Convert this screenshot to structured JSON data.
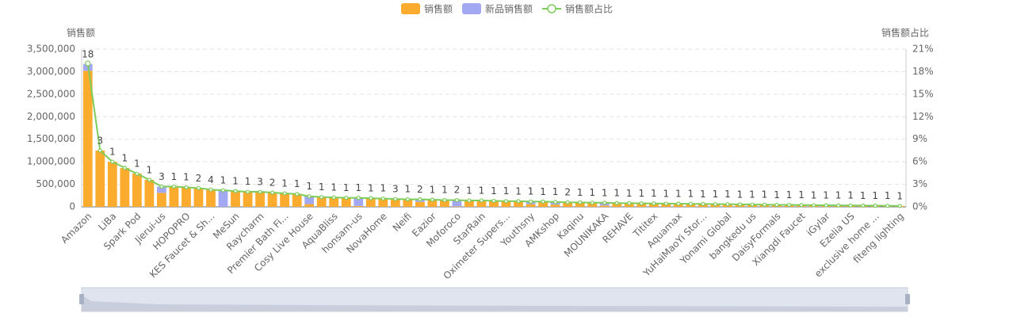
{
  "chart_data": {
    "type": "bar",
    "y_axis_label": "销售额",
    "y2_axis_label": "销售额占比",
    "categories": [
      "Amazon",
      null,
      "LiBa",
      null,
      "Spark Pod",
      null,
      "Jierui-us",
      null,
      "HOPOPRO",
      null,
      "KES Faucet & Sh...",
      null,
      "MeSun",
      null,
      "Raycharm",
      null,
      "Premier Bath Fi...",
      null,
      "Cosy Live House",
      null,
      "AquaBliss",
      null,
      "honsam-us",
      null,
      "NovaHome",
      null,
      "Neifi",
      null,
      "Eazior",
      null,
      "Moforoco",
      null,
      "StarRain",
      null,
      "Oximeter Supers...",
      null,
      "Youthsny",
      null,
      "AMKshop",
      null,
      "Kaqinu",
      null,
      "MOUNIKAKA",
      null,
      "REHAVE",
      null,
      "Tititex",
      null,
      "Aquamax",
      null,
      "YuHaiMaoYi Stor...",
      null,
      "Yonami Global",
      null,
      "bangkedu us",
      null,
      "DaisyFormals",
      null,
      "Xiangdi Faucet",
      null,
      "iGylar",
      null,
      "Ezelia US",
      null,
      "exclusive home ...",
      null,
      "fiteng lighting"
    ],
    "series": [
      {
        "name": "销售额",
        "type": "bar",
        "color": "#fbab2d",
        "values": [
          3020000,
          1250000,
          1000000,
          860000,
          740000,
          600000,
          310000,
          450000,
          440000,
          410000,
          380000,
          0,
          350000,
          340000,
          330000,
          320000,
          300000,
          290000,
          60000,
          220000,
          210000,
          205000,
          20000,
          195000,
          190000,
          180000,
          175000,
          110000,
          160000,
          155000,
          10000,
          145000,
          140000,
          135000,
          130000,
          125000,
          60000,
          115000,
          50000,
          105000,
          100000,
          95000,
          30000,
          85000,
          82000,
          79000,
          76000,
          73000,
          70000,
          67000,
          64000,
          61000,
          58000,
          55000,
          52000,
          49000,
          46000,
          43000,
          40000,
          37000,
          35000,
          33000,
          31000,
          29000,
          27000,
          24000,
          20000
        ]
      },
      {
        "name": "新品销售额",
        "type": "bar",
        "color": "#a3a8f2",
        "values": [
          150000,
          0,
          0,
          0,
          0,
          0,
          140000,
          0,
          0,
          0,
          0,
          370000,
          0,
          0,
          0,
          0,
          0,
          0,
          180000,
          0,
          0,
          0,
          180000,
          0,
          0,
          0,
          0,
          60000,
          0,
          0,
          150000,
          0,
          0,
          0,
          0,
          0,
          60000,
          0,
          60000,
          0,
          0,
          0,
          60000,
          0,
          0,
          0,
          0,
          0,
          0,
          0,
          0,
          0,
          0,
          0,
          0,
          0,
          0,
          0,
          0,
          0,
          0,
          0,
          0,
          0,
          0,
          0,
          0
        ]
      },
      {
        "name": "销售额占比",
        "type": "line",
        "axis": "y2",
        "color": "#7dcc5c",
        "values": [
          19.1,
          7.5,
          6.0,
          5.2,
          4.4,
          3.6,
          2.7,
          2.7,
          2.6,
          2.5,
          2.3,
          2.2,
          2.1,
          2.0,
          2.0,
          1.9,
          1.8,
          1.7,
          1.4,
          1.3,
          1.25,
          1.2,
          1.2,
          1.15,
          1.1,
          1.05,
          1.0,
          1.0,
          0.95,
          0.9,
          0.9,
          0.85,
          0.85,
          0.8,
          0.75,
          0.75,
          0.7,
          0.7,
          0.65,
          0.6,
          0.6,
          0.55,
          0.55,
          0.5,
          0.49,
          0.47,
          0.45,
          0.43,
          0.42,
          0.4,
          0.38,
          0.36,
          0.35,
          0.33,
          0.31,
          0.29,
          0.27,
          0.26,
          0.24,
          0.22,
          0.21,
          0.2,
          0.18,
          0.17,
          0.16,
          0.14,
          0.12
        ]
      }
    ],
    "counts": [
      18,
      3,
      1,
      1,
      1,
      1,
      3,
      1,
      1,
      2,
      4,
      1,
      1,
      1,
      3,
      2,
      1,
      1,
      1,
      1,
      1,
      1,
      1,
      1,
      1,
      3,
      1,
      2,
      1,
      1,
      2,
      1,
      1,
      1,
      1,
      1,
      1,
      1,
      1,
      2,
      1,
      1,
      1,
      1,
      1,
      1,
      1,
      1,
      1,
      1,
      1,
      1,
      1,
      1,
      1,
      1,
      1,
      1,
      1,
      1,
      1,
      1,
      1,
      1,
      1,
      1,
      1
    ],
    "ylim": [
      0,
      3500000
    ],
    "yticks": [
      0,
      {
        "value": 500000,
        "label": "500,000"
      },
      {
        "value": 1000000,
        "label": "1,000,000"
      },
      {
        "value": 1500000,
        "label": "1,500,000"
      },
      {
        "value": 2000000,
        "label": "2,000,000"
      },
      {
        "value": 2500000,
        "label": "2,500,000"
      },
      {
        "value": 3000000,
        "label": "3,000,000"
      },
      {
        "value": 3500000,
        "label": "3,500,000"
      }
    ],
    "y2lim": [
      0,
      21
    ],
    "y2ticks": [
      {
        "value": 0,
        "label": "0%"
      },
      {
        "value": 3,
        "label": "3%"
      },
      {
        "value": 6,
        "label": "6%"
      },
      {
        "value": 9,
        "label": "9%"
      },
      {
        "value": 12,
        "label": "12%"
      },
      {
        "value": 15,
        "label": "15%"
      },
      {
        "value": 18,
        "label": "18%"
      },
      {
        "value": 21,
        "label": "21%"
      }
    ],
    "grid": true,
    "legend": "top"
  }
}
